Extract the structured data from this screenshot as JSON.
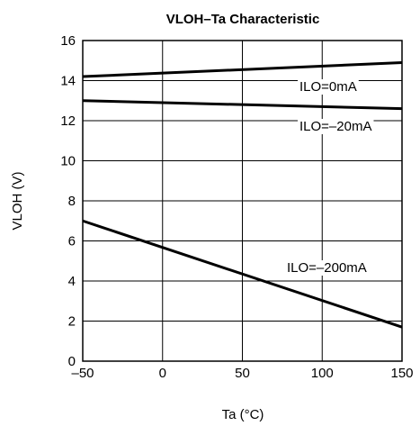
{
  "chart_data": {
    "type": "line",
    "title": "VLOH–Ta Characteristic",
    "xlabel": "Ta (°C)",
    "ylabel": "VLOH (V)",
    "xlim": [
      -50,
      150
    ],
    "ylim": [
      0,
      16
    ],
    "x_ticks": [
      -50,
      0,
      50,
      100,
      150
    ],
    "x_tick_labels": [
      "–50",
      "0",
      "50",
      "100",
      "150"
    ],
    "y_ticks": [
      0,
      2,
      4,
      6,
      8,
      10,
      12,
      14,
      16
    ],
    "y_tick_labels": [
      "0",
      "2",
      "4",
      "6",
      "8",
      "10",
      "12",
      "14",
      "16"
    ],
    "grid": true,
    "series": [
      {
        "name": "ILO=0mA",
        "x": [
          -50,
          150
        ],
        "y": [
          14.2,
          14.9
        ]
      },
      {
        "name": "ILO=–20mA",
        "x": [
          -50,
          150
        ],
        "y": [
          13.0,
          12.6
        ]
      },
      {
        "name": "ILO=–200mA",
        "x": [
          -50,
          150
        ],
        "y": [
          7.0,
          1.7
        ]
      }
    ]
  }
}
